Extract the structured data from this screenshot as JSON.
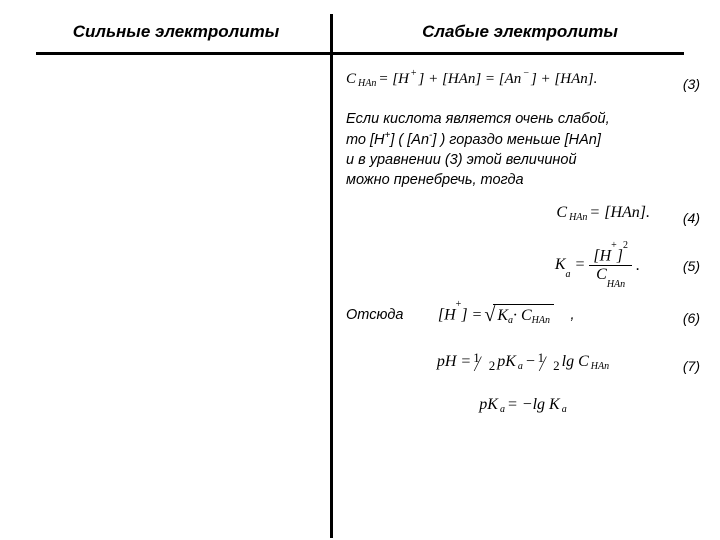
{
  "header": {
    "left": "Сильные электролиты",
    "right": "Слабые электролиты"
  },
  "eq3": {
    "text_html": "C<sub>HAn</sub> = [H<sup>+</sup>] + [HAn] = [An<sup>−</sup>] + [HAn].",
    "num": "(3)",
    "fontsize": 15
  },
  "paragraph": {
    "line1": "Если кислота является очень слабой,",
    "line2_html": "то [H<sup>+</sup>] ( [An<sup>-</sup>] ) гораздо меньше [HAn]",
    "line3": "и в уравнении (3) этой величиной",
    "line4": "можно пренебречь, тогда"
  },
  "eq4": {
    "text_html": "C<sub>HAn</sub> = [HAn].",
    "num": "(4)"
  },
  "eq5": {
    "lhs_html": "K<sub>a</sub> =",
    "num_html": "[H<sup>+</sup>]<sup>2</sup>",
    "den_html": "C<sub>HAn</sub>",
    "trail": ".",
    "num_label": "(5)"
  },
  "eq6": {
    "lead": "Отсюда",
    "lhs_html": "[H<sup>+</sup>] =",
    "radicand_html": "K<sub>a</sub> · C<sub>HAn</sub>",
    "trail": ",",
    "num": "(6)"
  },
  "eq7": {
    "text_html": "pH = <HALF> pK<sub>a</sub> − <HALF> lg C<sub>HAn</sub>",
    "num": "(7)"
  },
  "eq8": {
    "text_html": "pK<sub>a</sub> = −lg K<sub>a</sub>"
  },
  "style": {
    "page_bg": "#ffffff",
    "text_color": "#000000",
    "rule_color": "#000000",
    "header_fontsize": 17,
    "body_fontsize": 14.5,
    "eq_fontsize": 16
  }
}
